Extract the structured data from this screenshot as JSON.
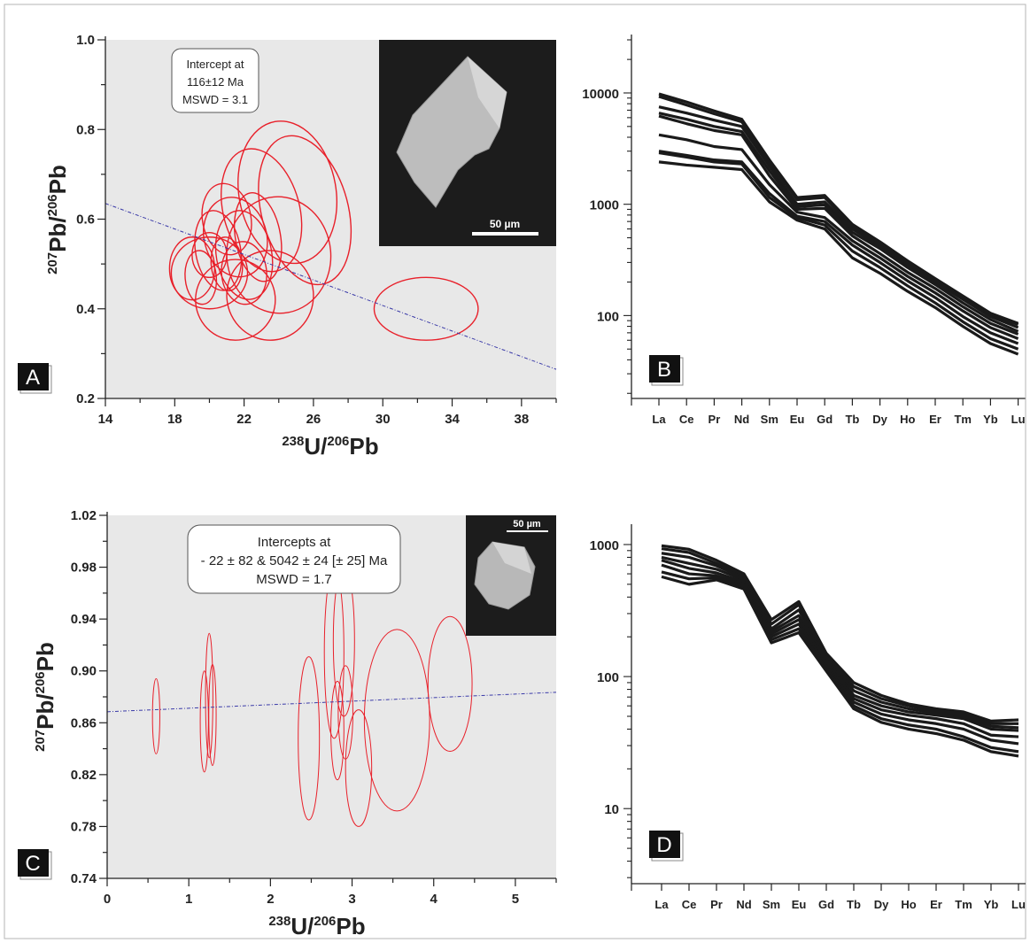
{
  "chart_data": [
    {
      "panel": "A",
      "type": "scatter",
      "title": "",
      "xlabel": {
        "sup": "238",
        "main": "U/",
        "sup2": "206",
        "end": "Pb"
      },
      "ylabel": {
        "sup": "207",
        "main": "Pb/",
        "sup2": "206",
        "end": "Pb"
      },
      "xlim": [
        14,
        40
      ],
      "ylim": [
        0.2,
        1.0
      ],
      "xticks": [
        "14",
        "18",
        "22",
        "26",
        "30",
        "34",
        "38"
      ],
      "yticks": [
        "0.2",
        "0.4",
        "0.6",
        "0.8",
        "1.0"
      ],
      "annotation": [
        "Intercept at",
        "116±12 Ma",
        "MSWD = 3.1"
      ],
      "inset_scale": "50 µm",
      "ellipse_color": "#e8202a",
      "line_color": "#3a3aa8",
      "regression": {
        "x": [
          14,
          40
        ],
        "y": [
          0.635,
          0.265
        ]
      },
      "ellipses": [
        {
          "cx": 24.5,
          "cy": 0.66,
          "rx": 2.8,
          "ry": 0.16,
          "rot": 10
        },
        {
          "cx": 23.0,
          "cy": 0.62,
          "rx": 2.2,
          "ry": 0.14,
          "rot": 15
        },
        {
          "cx": 25.5,
          "cy": 0.62,
          "rx": 2.5,
          "ry": 0.17,
          "rot": 15
        },
        {
          "cx": 24.0,
          "cy": 0.52,
          "rx": 3.0,
          "ry": 0.13,
          "rot": 5
        },
        {
          "cx": 23.5,
          "cy": 0.43,
          "rx": 2.5,
          "ry": 0.1,
          "rot": 5
        },
        {
          "cx": 21.5,
          "cy": 0.42,
          "rx": 2.3,
          "ry": 0.09,
          "rot": 0
        },
        {
          "cx": 20.0,
          "cy": 0.48,
          "rx": 2.2,
          "ry": 0.08,
          "rot": 0
        },
        {
          "cx": 19.0,
          "cy": 0.49,
          "rx": 1.3,
          "ry": 0.07,
          "rot": 0
        },
        {
          "cx": 21.5,
          "cy": 0.56,
          "rx": 1.8,
          "ry": 0.09,
          "rot": 15
        },
        {
          "cx": 20.5,
          "cy": 0.53,
          "rx": 1.3,
          "ry": 0.09,
          "rot": 10
        },
        {
          "cx": 22.0,
          "cy": 0.52,
          "rx": 1.6,
          "ry": 0.1,
          "rot": 10
        },
        {
          "cx": 21.0,
          "cy": 0.6,
          "rx": 1.4,
          "ry": 0.08,
          "rot": 10
        },
        {
          "cx": 22.8,
          "cy": 0.56,
          "rx": 1.3,
          "ry": 0.1,
          "rot": 10
        },
        {
          "cx": 20.0,
          "cy": 0.52,
          "rx": 1.0,
          "ry": 0.05,
          "rot": 0
        },
        {
          "cx": 19.5,
          "cy": 0.47,
          "rx": 0.9,
          "ry": 0.06,
          "rot": 5
        },
        {
          "cx": 22.0,
          "cy": 0.48,
          "rx": 1.3,
          "ry": 0.07,
          "rot": 5
        },
        {
          "cx": 21.0,
          "cy": 0.5,
          "rx": 0.9,
          "ry": 0.06,
          "rot": 5
        },
        {
          "cx": 32.5,
          "cy": 0.4,
          "rx": 3.0,
          "ry": 0.07,
          "rot": 0
        }
      ]
    },
    {
      "panel": "B",
      "type": "line",
      "title": "",
      "yscale": "log",
      "ylim": [
        18,
        30000
      ],
      "categories": [
        "La",
        "Ce",
        "Pr",
        "Nd",
        "Sm",
        "Eu",
        "Gd",
        "Tb",
        "Dy",
        "Ho",
        "Er",
        "Tm",
        "Yb",
        "Lu"
      ],
      "yticks": [
        "100",
        "1000",
        "10000"
      ],
      "line_color": "#1a1a1a",
      "series": [
        {
          "values": [
            9800,
            8300,
            6900,
            5800,
            2500,
            1150,
            1200,
            660,
            460,
            310,
            215,
            150,
            105,
            85
          ]
        },
        {
          "values": [
            9300,
            7800,
            6500,
            5500,
            2400,
            1100,
            1150,
            630,
            440,
            300,
            210,
            145,
            102,
            83
          ]
        },
        {
          "values": [
            7500,
            6600,
            5700,
            5000,
            2200,
            1000,
            1050,
            600,
            420,
            285,
            200,
            140,
            98,
            78
          ]
        },
        {
          "values": [
            6600,
            5800,
            5000,
            4500,
            2000,
            950,
            990,
            560,
            400,
            270,
            190,
            130,
            92,
            72
          ]
        },
        {
          "values": [
            6200,
            5300,
            4600,
            4200,
            1800,
            900,
            920,
            520,
            360,
            245,
            175,
            120,
            85,
            68
          ]
        },
        {
          "values": [
            4200,
            3800,
            3300,
            3100,
            1500,
            850,
            760,
            470,
            330,
            225,
            160,
            110,
            78,
            62
          ]
        },
        {
          "values": [
            3000,
            2750,
            2500,
            2400,
            1250,
            780,
            700,
            430,
            300,
            205,
            145,
            98,
            70,
            56
          ]
        },
        {
          "values": [
            2900,
            2650,
            2400,
            2300,
            1150,
            760,
            650,
            380,
            270,
            185,
            130,
            88,
            62,
            50
          ]
        },
        {
          "values": [
            2400,
            2250,
            2150,
            2050,
            1050,
            720,
            600,
            330,
            240,
            165,
            118,
            80,
            56,
            45
          ]
        }
      ]
    },
    {
      "panel": "C",
      "type": "scatter",
      "title": "",
      "xlabel": {
        "sup": "238",
        "main": "U/",
        "sup2": "206",
        "end": "Pb"
      },
      "ylabel": {
        "sup": "207",
        "main": "Pb/",
        "sup2": "206",
        "end": "Pb"
      },
      "xlim": [
        0,
        5.5
      ],
      "ylim": [
        0.74,
        1.02
      ],
      "xticks": [
        "0",
        "1",
        "2",
        "3",
        "4",
        "5"
      ],
      "yticks": [
        "0.74",
        "0.78",
        "0.82",
        "0.86",
        "0.90",
        "0.94",
        "0.98",
        "1.02"
      ],
      "annotation": [
        "Intercepts at",
        "- 22 ± 82 & 5042 ± 24 [± 25] Ma",
        "MSWD = 1.7"
      ],
      "inset_scale": "50 µm",
      "ellipse_color": "#e8202a",
      "line_color": "#3a3aa8",
      "regression": {
        "x": [
          0,
          5.5
        ],
        "y": [
          0.8685,
          0.8835
        ]
      },
      "ellipses": [
        {
          "cx": 0.6,
          "cy": 0.865,
          "rx": 0.045,
          "ry": 0.029,
          "rot": 0
        },
        {
          "cx": 1.19,
          "cy": 0.861,
          "rx": 0.05,
          "ry": 0.039,
          "rot": 0
        },
        {
          "cx": 1.25,
          "cy": 0.881,
          "rx": 0.045,
          "ry": 0.048,
          "rot": 0
        },
        {
          "cx": 1.29,
          "cy": 0.866,
          "rx": 0.045,
          "ry": 0.039,
          "rot": 0
        },
        {
          "cx": 2.47,
          "cy": 0.848,
          "rx": 0.13,
          "ry": 0.063,
          "rot": 0
        },
        {
          "cx": 2.78,
          "cy": 0.914,
          "rx": 0.12,
          "ry": 0.066,
          "rot": 0
        },
        {
          "cx": 2.9,
          "cy": 0.923,
          "rx": 0.13,
          "ry": 0.058,
          "rot": 0
        },
        {
          "cx": 2.82,
          "cy": 0.854,
          "rx": 0.08,
          "ry": 0.038,
          "rot": 0
        },
        {
          "cx": 2.92,
          "cy": 0.868,
          "rx": 0.09,
          "ry": 0.036,
          "rot": 0
        },
        {
          "cx": 3.08,
          "cy": 0.825,
          "rx": 0.16,
          "ry": 0.045,
          "rot": 0
        },
        {
          "cx": 3.55,
          "cy": 0.862,
          "rx": 0.4,
          "ry": 0.07,
          "rot": 0
        },
        {
          "cx": 4.2,
          "cy": 0.89,
          "rx": 0.27,
          "ry": 0.052,
          "rot": 0
        }
      ]
    },
    {
      "panel": "D",
      "type": "line",
      "title": "",
      "yscale": "log",
      "ylim": [
        2.7,
        1300
      ],
      "categories": [
        "La",
        "Ce",
        "Pr",
        "Nd",
        "Sm",
        "Eu",
        "Gd",
        "Tb",
        "Dy",
        "Ho",
        "Er",
        "Tm",
        "Yb",
        "Lu"
      ],
      "yticks": [
        "10",
        "100",
        "1000"
      ],
      "line_color": "#1a1a1a",
      "series": [
        {
          "values": [
            980,
            920,
            760,
            600,
            270,
            370,
            150,
            90,
            72,
            62,
            57,
            54,
            46,
            47
          ]
        },
        {
          "values": [
            930,
            870,
            720,
            580,
            250,
            350,
            145,
            84,
            68,
            60,
            55,
            52,
            44,
            44
          ]
        },
        {
          "values": [
            860,
            800,
            690,
            560,
            230,
            320,
            140,
            78,
            64,
            57,
            53,
            50,
            42,
            41
          ]
        },
        {
          "values": [
            800,
            720,
            650,
            540,
            220,
            290,
            135,
            72,
            60,
            54,
            51,
            48,
            40,
            39
          ]
        },
        {
          "values": [
            760,
            660,
            610,
            520,
            210,
            270,
            128,
            68,
            56,
            51,
            48,
            44,
            36,
            35
          ]
        },
        {
          "values": [
            700,
            600,
            580,
            500,
            200,
            250,
            120,
            64,
            52,
            47,
            44,
            40,
            33,
            31
          ]
        },
        {
          "values": [
            620,
            550,
            560,
            480,
            190,
            230,
            115,
            60,
            48,
            43,
            40,
            35,
            29,
            27
          ]
        },
        {
          "values": [
            570,
            500,
            540,
            460,
            180,
            215,
            110,
            57,
            45,
            40,
            37,
            33,
            27,
            25
          ]
        }
      ]
    }
  ]
}
